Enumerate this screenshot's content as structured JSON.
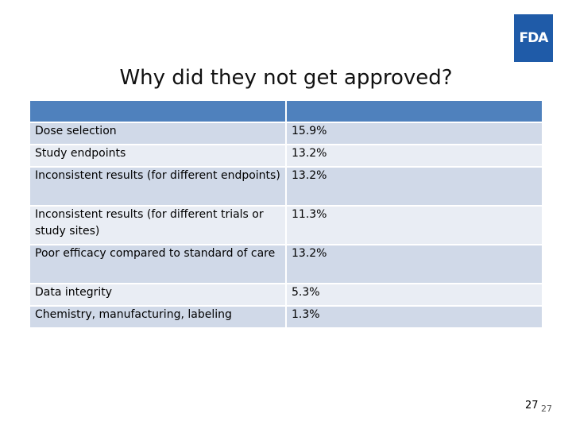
{
  "logo": {
    "text": "FDA",
    "color": "#1f5ba8"
  },
  "title": "Why did they not get approved?",
  "table": {
    "headers": [
      "",
      ""
    ],
    "header_color": "#4f81bd",
    "rows": [
      {
        "reason": "Dose selection",
        "percent": "15.9%"
      },
      {
        "reason": "Study endpoints",
        "percent": "13.2%"
      },
      {
        "reason": "Inconsistent results (for different endpoints)",
        "percent": "13.2%"
      },
      {
        "reason": "Inconsistent results (for different trials or study sites)",
        "percent": "11.3%"
      },
      {
        "reason": "Poor efficacy compared to standard of care",
        "percent": "13.2%"
      },
      {
        "reason": "Data integrity",
        "percent": "5.3%"
      },
      {
        "reason": "Chemistry, manufacturing, labeling",
        "percent": "1.3%"
      }
    ]
  },
  "page_number": "27",
  "page_number_small": "27"
}
